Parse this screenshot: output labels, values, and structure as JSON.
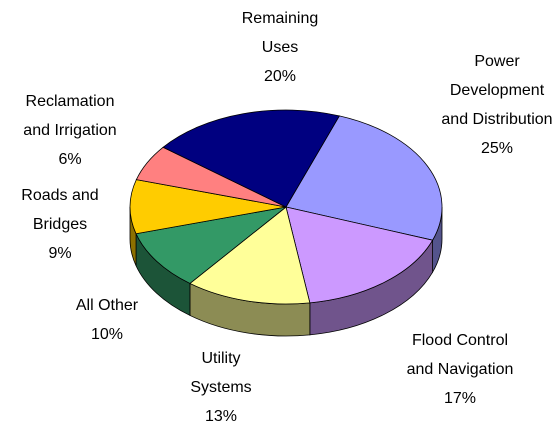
{
  "chart_data": {
    "type": "pie3d",
    "categories": [
      "Remaining Uses",
      "Power Development and Distribution",
      "Flood Control and Navigation",
      "Utility Systems",
      "All Other",
      "Roads and Bridges",
      "Reclamation and Irrigation"
    ],
    "values": [
      20,
      25,
      17,
      13,
      10,
      9,
      6
    ],
    "value_labels": [
      "20%",
      "25%",
      "17%",
      "13%",
      "10%",
      "9%",
      "6%"
    ],
    "colors": [
      "#000080",
      "#9999ff",
      "#cc99ff",
      "#ffff99",
      "#339966",
      "#ffcc00",
      "#ff8080"
    ]
  }
}
